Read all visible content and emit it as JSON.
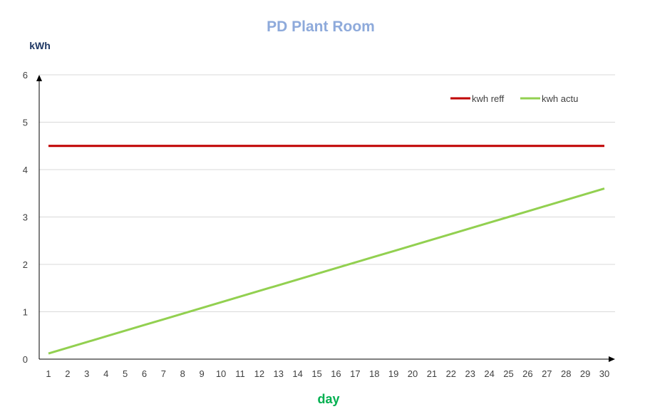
{
  "chart_data": {
    "type": "line",
    "title": "PD Plant Room",
    "xlabel": "day",
    "ylabel": "kWh",
    "x": [
      1,
      2,
      3,
      4,
      5,
      6,
      7,
      8,
      9,
      10,
      11,
      12,
      13,
      14,
      15,
      16,
      17,
      18,
      19,
      20,
      21,
      22,
      23,
      24,
      25,
      26,
      27,
      28,
      29,
      30
    ],
    "xlim": [
      1,
      30
    ],
    "ylim": [
      0,
      6
    ],
    "yticks": [
      0,
      1,
      2,
      3,
      4,
      5,
      6
    ],
    "grid": true,
    "legend_position": "top-right",
    "series": [
      {
        "name": "kwh reff",
        "color": "#c00000",
        "values": [
          4.5,
          4.5,
          4.5,
          4.5,
          4.5,
          4.5,
          4.5,
          4.5,
          4.5,
          4.5,
          4.5,
          4.5,
          4.5,
          4.5,
          4.5,
          4.5,
          4.5,
          4.5,
          4.5,
          4.5,
          4.5,
          4.5,
          4.5,
          4.5,
          4.5,
          4.5,
          4.5,
          4.5,
          4.5,
          4.5
        ]
      },
      {
        "name": "kwh actu",
        "color": "#92d050",
        "values": [
          0.12,
          0.24,
          0.36,
          0.48,
          0.6,
          0.72,
          0.84,
          0.96,
          1.08,
          1.2,
          1.32,
          1.44,
          1.56,
          1.68,
          1.8,
          1.92,
          2.04,
          2.16,
          2.28,
          2.4,
          2.52,
          2.64,
          2.76,
          2.88,
          3.0,
          3.12,
          3.24,
          3.36,
          3.48,
          3.6
        ]
      }
    ]
  },
  "colors": {
    "title": "#8eaadb",
    "ylabel": "#1f3864",
    "xlabel": "#00b050",
    "grid": "#d9d9d9",
    "axis": "#000000"
  }
}
